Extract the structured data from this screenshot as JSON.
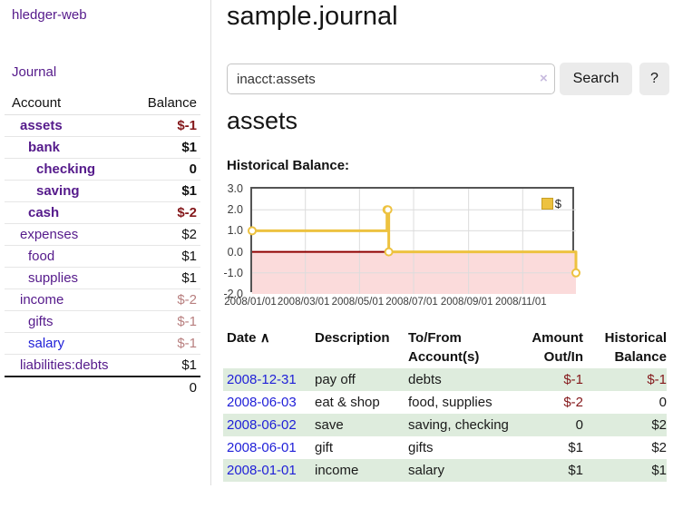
{
  "app": {
    "brand": "hledger-web"
  },
  "sidebar": {
    "nav_journal": "Journal",
    "table": {
      "headers": [
        "Account",
        "Balance"
      ],
      "rows": [
        {
          "account": "assets",
          "balance": "$-1",
          "level": 1,
          "bold": true
        },
        {
          "account": "bank",
          "balance": "$1",
          "level": 2,
          "bold": true
        },
        {
          "account": "checking",
          "balance": "0",
          "level": 3,
          "bold": true
        },
        {
          "account": "saving",
          "balance": "$1",
          "level": 3,
          "bold": true
        },
        {
          "account": "cash",
          "balance": "$-2",
          "level": 2,
          "bold": true
        },
        {
          "account": "expenses",
          "balance": "$2",
          "level": 1,
          "bold": false
        },
        {
          "account": "food",
          "balance": "$1",
          "level": 2,
          "bold": false
        },
        {
          "account": "supplies",
          "balance": "$1",
          "level": 2,
          "bold": false
        },
        {
          "account": "income",
          "balance": "$-2",
          "level": 1,
          "bold": false
        },
        {
          "account": "gifts",
          "balance": "$-1",
          "level": 2,
          "bold": false
        },
        {
          "account": "salary",
          "balance": "$-1",
          "level": 2,
          "bold": false,
          "blue": true
        },
        {
          "account": "liabilities:debts",
          "balance": "$1",
          "level": 1,
          "bold": false
        }
      ],
      "total": "0"
    }
  },
  "header": {
    "title": "sample.journal"
  },
  "search": {
    "value": "inacct:assets",
    "clear_icon": "×",
    "button_label": "Search",
    "help_label": "?"
  },
  "account_page": {
    "heading": "assets",
    "chart_label": "Historical Balance:"
  },
  "chart_data": {
    "type": "line",
    "title": "Historical Balance:",
    "step": true,
    "series": [
      {
        "name": "$",
        "color": "#edc240",
        "points": [
          {
            "date": "2008-01-01",
            "day": 0,
            "value": 1
          },
          {
            "date": "2008-06-01",
            "day": 152,
            "value": 2
          },
          {
            "date": "2008-06-02",
            "day": 153,
            "value": 2
          },
          {
            "date": "2008-06-03",
            "day": 154,
            "value": 0
          },
          {
            "date": "2008-12-31",
            "day": 365,
            "value": -1
          }
        ]
      }
    ],
    "ylim": [
      -2,
      3
    ],
    "xlim_days": [
      0,
      365
    ],
    "y_ticks": [
      {
        "label": "3.0",
        "value": 3
      },
      {
        "label": "2.0",
        "value": 2
      },
      {
        "label": "1.0",
        "value": 1
      },
      {
        "label": "0.0",
        "value": 0
      },
      {
        "label": "-1.0",
        "value": -1
      },
      {
        "label": "-2.0",
        "value": -2
      }
    ],
    "x_ticks": [
      {
        "label": "2008/01/01",
        "day": 0
      },
      {
        "label": "2008/03/01",
        "day": 60
      },
      {
        "label": "2008/05/01",
        "day": 121
      },
      {
        "label": "2008/07/01",
        "day": 182
      },
      {
        "label": "2008/09/01",
        "day": 244
      },
      {
        "label": "2008/11/01",
        "day": 305
      }
    ],
    "legend": {
      "label": "$",
      "position": "top-right"
    },
    "colors": {
      "negative_fill": "#fbdbdb",
      "zero_line": "#8f0000",
      "grid": "#dcdcdc",
      "border": "#545454"
    }
  },
  "register": {
    "headers": [
      {
        "label": "Date",
        "sort": "∧"
      },
      {
        "label": "Description"
      },
      {
        "label": "To/From Account(s)"
      },
      {
        "label": "Amount Out/In"
      },
      {
        "label": "Historical Balance"
      }
    ],
    "rows": [
      {
        "date": "2008-12-31",
        "description": "pay off",
        "accounts": "debts",
        "amount": "$-1",
        "balance": "$-1"
      },
      {
        "date": "2008-06-03",
        "description": "eat & shop",
        "accounts": "food, supplies",
        "amount": "$-2",
        "balance": "0"
      },
      {
        "date": "2008-06-02",
        "description": "save",
        "accounts": "saving, checking",
        "amount": "0",
        "balance": "$2"
      },
      {
        "date": "2008-06-01",
        "description": "gift",
        "accounts": "gifts",
        "amount": "$1",
        "balance": "$2"
      },
      {
        "date": "2008-01-01",
        "description": "income",
        "accounts": "salary",
        "amount": "$1",
        "balance": "$1"
      }
    ]
  }
}
